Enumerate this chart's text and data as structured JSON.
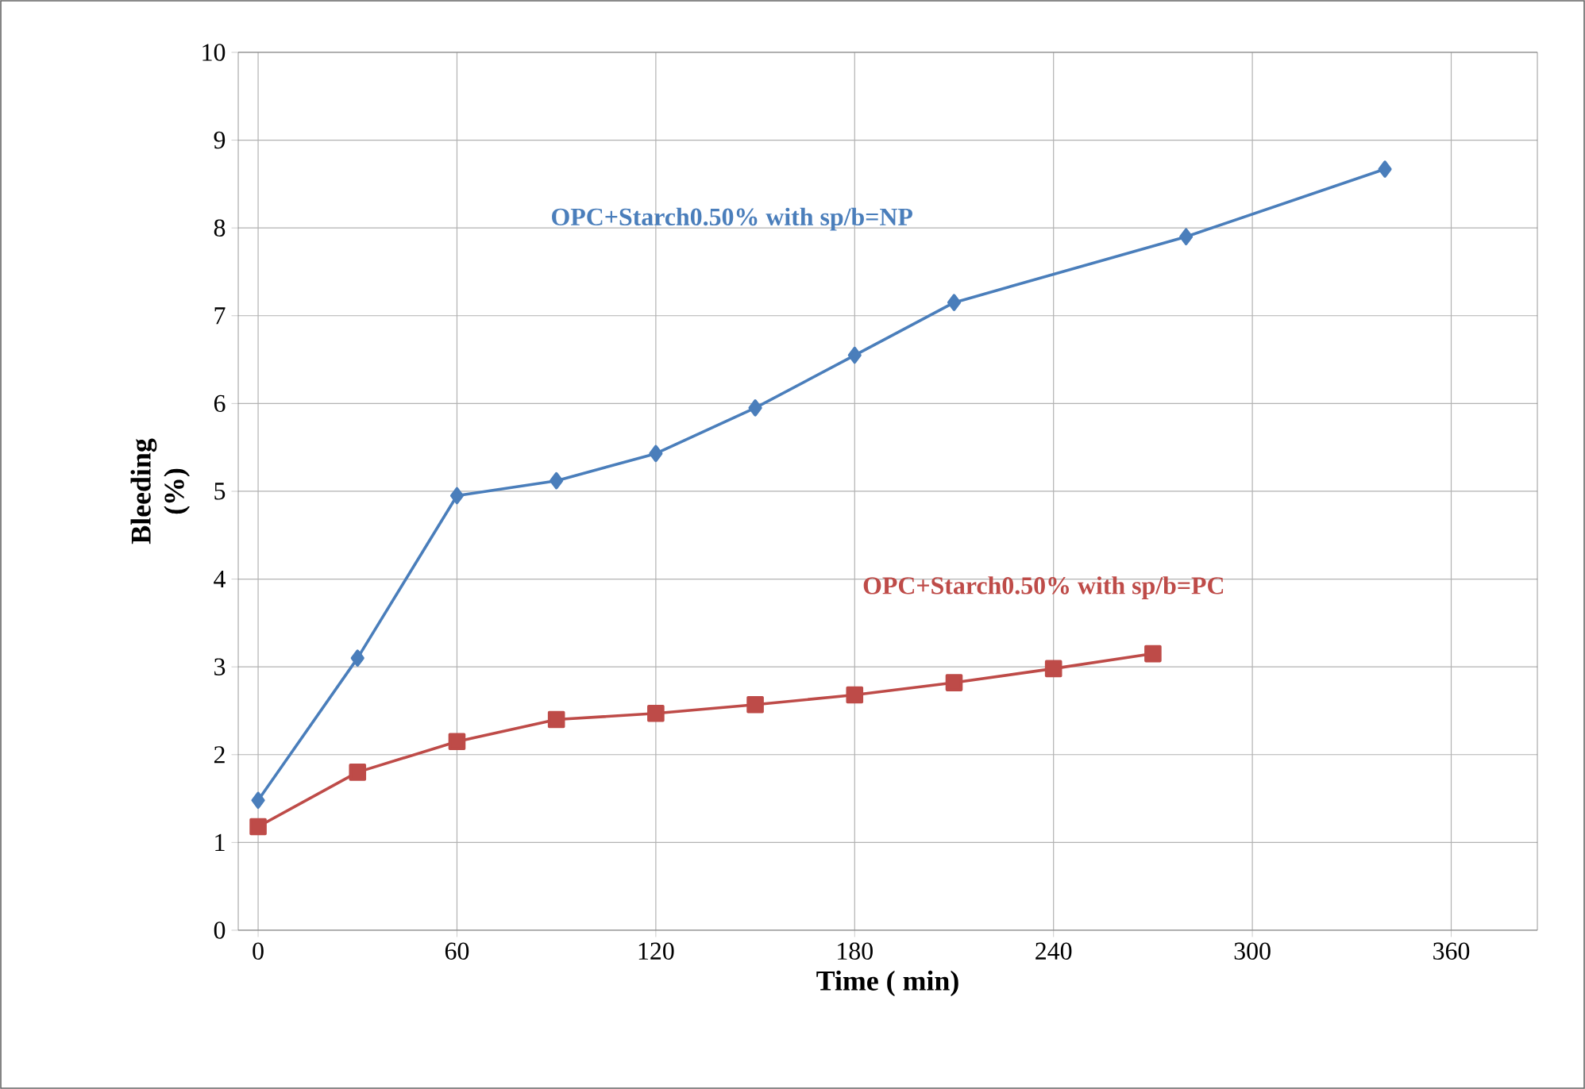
{
  "chart_data": {
    "type": "line",
    "xlabel": "Time ( min)",
    "ylabel": "Bleeding (%)",
    "xlim": [
      -6,
      386
    ],
    "ylim": [
      0,
      10
    ],
    "xticks": [
      0,
      60,
      120,
      180,
      240,
      300,
      360
    ],
    "yticks": [
      0,
      1,
      2,
      3,
      4,
      5,
      6,
      7,
      8,
      9,
      10
    ],
    "grid": true,
    "legend": false,
    "series": [
      {
        "name": "OPC+Starch0.50% with sp/b=NP",
        "color": "#4a7ebb",
        "marker": "diamond",
        "x": [
          0,
          30,
          60,
          90,
          120,
          150,
          180,
          210,
          280,
          340
        ],
        "values": [
          1.48,
          3.1,
          4.95,
          5.12,
          5.43,
          5.95,
          6.55,
          7.15,
          7.9,
          8.67
        ]
      },
      {
        "name": "OPC+Starch0.50% with sp/b=PC",
        "color": "#be4b48",
        "marker": "square",
        "x": [
          0,
          30,
          60,
          90,
          120,
          150,
          180,
          210,
          240,
          270
        ],
        "values": [
          1.18,
          1.8,
          2.15,
          2.4,
          2.47,
          2.57,
          2.68,
          2.82,
          2.98,
          3.15
        ]
      }
    ]
  }
}
